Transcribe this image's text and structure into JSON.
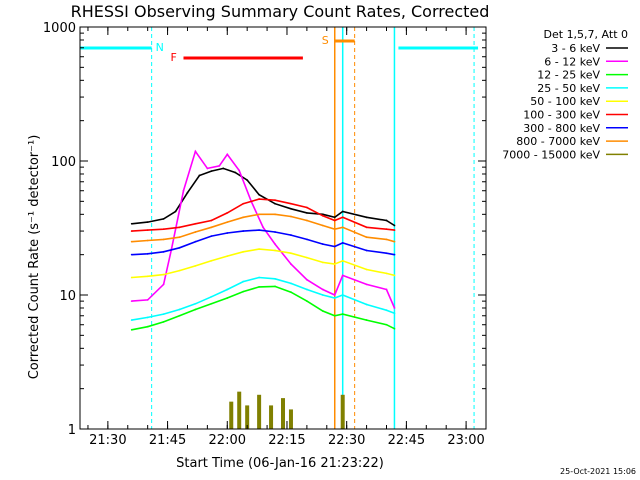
{
  "chart_data": {
    "type": "line",
    "title": "RHESSI Observing Summary Count Rates, Corrected",
    "xlabel": "Start Time (06-Jan-16 21:23:22)",
    "ylabel": "Corrected Count Rate (s⁻¹ detector⁻¹)",
    "yscale": "log",
    "ylim": [
      1,
      1000
    ],
    "xlim": [
      "21:23",
      "23:05"
    ],
    "x_ticks": [
      "21:30",
      "21:45",
      "22:00",
      "22:15",
      "22:30",
      "22:45",
      "23:00"
    ],
    "y_ticks": [
      "1",
      "10",
      "100",
      "1000"
    ],
    "legend_title": "Det 1,5,7, Att 0",
    "legend_position": "right",
    "timestamp": "25-Oct-2021 15:06",
    "series": [
      {
        "name": "3 - 6 keV",
        "color": "#000000",
        "x": [
          "21:36",
          "21:40",
          "21:44",
          "21:47",
          "21:50",
          "21:53",
          "21:56",
          "21:59",
          "22:02",
          "22:05",
          "22:08",
          "22:12",
          "22:16",
          "22:20",
          "22:24",
          "22:27",
          "22:29",
          "22:35",
          "22:40",
          "22:42"
        ],
        "y": [
          34,
          35,
          37,
          42,
          58,
          78,
          84,
          88,
          82,
          72,
          56,
          48,
          44,
          41,
          40,
          38,
          42,
          38,
          36,
          33
        ]
      },
      {
        "name": "6 - 12 keV",
        "color": "#ff00ff",
        "x": [
          "21:36",
          "21:40",
          "21:44",
          "21:46",
          "21:49",
          "21:52",
          "21:55",
          "21:58",
          "22:00",
          "22:03",
          "22:06",
          "22:09",
          "22:12",
          "22:16",
          "22:20",
          "22:24",
          "22:27",
          "22:29",
          "22:35",
          "22:40",
          "22:42"
        ],
        "y": [
          9,
          9.2,
          12,
          22,
          60,
          118,
          88,
          92,
          112,
          85,
          50,
          32,
          24,
          17,
          13,
          11,
          10,
          14,
          12,
          11,
          8
        ]
      },
      {
        "name": "12 - 25 keV",
        "color": "#00ff00",
        "x": [
          "21:36",
          "21:40",
          "21:44",
          "21:48",
          "21:52",
          "21:56",
          "22:00",
          "22:04",
          "22:08",
          "22:12",
          "22:16",
          "22:20",
          "22:24",
          "22:27",
          "22:29",
          "22:35",
          "22:40",
          "22:42"
        ],
        "y": [
          5.5,
          5.8,
          6.3,
          7,
          7.8,
          8.6,
          9.5,
          10.6,
          11.5,
          11.6,
          10.5,
          9,
          7.6,
          7,
          7.2,
          6.5,
          6,
          5.6
        ]
      },
      {
        "name": "25 - 50 keV",
        "color": "#00ffff",
        "x": [
          "21:36",
          "21:40",
          "21:44",
          "21:48",
          "21:52",
          "21:56",
          "22:00",
          "22:04",
          "22:08",
          "22:12",
          "22:16",
          "22:20",
          "22:24",
          "22:27",
          "22:29",
          "22:35",
          "22:40",
          "22:42"
        ],
        "y": [
          6.5,
          6.8,
          7.2,
          7.8,
          8.6,
          9.7,
          11,
          12.6,
          13.5,
          13.2,
          12.2,
          11,
          10,
          9.5,
          10,
          8.5,
          7.7,
          7.3
        ]
      },
      {
        "name": "50 - 100 keV",
        "color": "#ffff00",
        "x": [
          "21:36",
          "21:40",
          "21:44",
          "21:48",
          "21:52",
          "21:56",
          "22:00",
          "22:04",
          "22:08",
          "22:12",
          "22:16",
          "22:20",
          "22:24",
          "22:27",
          "22:29",
          "22:35",
          "22:40",
          "22:42"
        ],
        "y": [
          13.5,
          13.8,
          14.2,
          15.2,
          16.5,
          18,
          19.5,
          21,
          22,
          21.5,
          20.5,
          19,
          17.5,
          17,
          18,
          15.5,
          14.5,
          14
        ]
      },
      {
        "name": "100 - 300 keV",
        "color": "#ff0000",
        "x": [
          "21:36",
          "21:40",
          "21:44",
          "21:48",
          "21:52",
          "21:56",
          "22:00",
          "22:04",
          "22:08",
          "22:12",
          "22:16",
          "22:20",
          "22:24",
          "22:27",
          "22:29",
          "22:35",
          "22:40",
          "22:42"
        ],
        "y": [
          30,
          30.5,
          31,
          32,
          34,
          36,
          41,
          48,
          52,
          51,
          48,
          45,
          39,
          36,
          38,
          32,
          31,
          30.5
        ]
      },
      {
        "name": "300 - 800 keV",
        "color": "#0000ff",
        "x": [
          "21:36",
          "21:40",
          "21:44",
          "21:48",
          "21:52",
          "21:56",
          "22:00",
          "22:04",
          "22:08",
          "22:12",
          "22:16",
          "22:20",
          "22:24",
          "22:27",
          "22:29",
          "22:35",
          "22:40",
          "22:42"
        ],
        "y": [
          20,
          20.3,
          21,
          22.5,
          25,
          27.5,
          29,
          30,
          30.5,
          29.5,
          28,
          26,
          24,
          23,
          24.5,
          21.5,
          20.5,
          20
        ]
      },
      {
        "name": "800 - 7000 keV",
        "color": "#ff8c00",
        "x": [
          "21:36",
          "21:40",
          "21:44",
          "21:48",
          "21:52",
          "21:56",
          "22:00",
          "22:04",
          "22:08",
          "22:12",
          "22:16",
          "22:20",
          "22:24",
          "22:27",
          "22:29",
          "22:35",
          "22:40",
          "22:42"
        ],
        "y": [
          25,
          25.5,
          26,
          27,
          29.5,
          32,
          35,
          38,
          40,
          40,
          38.5,
          36,
          33,
          31,
          32,
          27,
          26,
          25
        ]
      },
      {
        "name": "7000 - 15000 keV",
        "color": "#808000",
        "x": [
          "22:01",
          "22:03",
          "22:05",
          "22:08",
          "22:11",
          "22:14",
          "22:16",
          "22:29"
        ],
        "y": [
          1.6,
          1.9,
          1.5,
          1.8,
          1.5,
          1.7,
          1.4,
          1.8
        ]
      }
    ],
    "annotations": {
      "night_label": "N",
      "flare_label": "F",
      "saa_label": "S",
      "night_color": "#00ffff",
      "flare_color": "#ff0000",
      "saa_color": "#ff8c00"
    }
  }
}
